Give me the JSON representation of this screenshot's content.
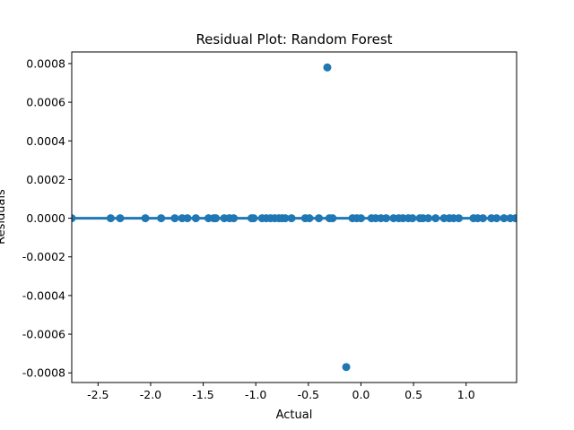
{
  "chart_data": {
    "type": "scatter",
    "title": "Residual Plot: Random Forest",
    "xlabel": "Actual",
    "ylabel": "Residuals",
    "xlim": [
      -2.75,
      1.48
    ],
    "ylim": [
      -0.00085,
      0.00086
    ],
    "grid": false,
    "legend": "none",
    "x_ticks": [
      "-2.5",
      "-2.0",
      "-1.5",
      "-1.0",
      "-0.5",
      "0.0",
      "0.5",
      "1.0"
    ],
    "x_tick_values": [
      -2.5,
      -2.0,
      -1.5,
      -1.0,
      -0.5,
      0.0,
      0.5,
      1.0
    ],
    "y_ticks": [
      "-0.0008",
      "-0.0006",
      "-0.0004",
      "-0.0002",
      "0.0000",
      "0.0002",
      "0.0004",
      "0.0006",
      "0.0008"
    ],
    "y_tick_values": [
      -0.0008,
      -0.0006,
      -0.0004,
      -0.0002,
      0.0,
      0.0002,
      0.0004,
      0.0006,
      0.0008
    ],
    "regression_line": {
      "x": [
        -2.75,
        1.48
      ],
      "y": [
        0.0,
        0.0
      ]
    },
    "series": [
      {
        "color": "#1f77b4",
        "points": [
          {
            "x": -2.75,
            "y": 0.0
          },
          {
            "x": -2.38,
            "y": 0.0
          },
          {
            "x": -2.29,
            "y": 0.0
          },
          {
            "x": -2.05,
            "y": 0.0
          },
          {
            "x": -1.9,
            "y": 0.0
          },
          {
            "x": -1.77,
            "y": 0.0
          },
          {
            "x": -1.7,
            "y": 0.0
          },
          {
            "x": -1.65,
            "y": 0.0
          },
          {
            "x": -1.57,
            "y": 0.0
          },
          {
            "x": -1.45,
            "y": 0.0
          },
          {
            "x": -1.4,
            "y": 0.0
          },
          {
            "x": -1.38,
            "y": 0.0
          },
          {
            "x": -1.3,
            "y": 0.0
          },
          {
            "x": -1.25,
            "y": 0.0
          },
          {
            "x": -1.21,
            "y": 0.0
          },
          {
            "x": -1.04,
            "y": 0.0
          },
          {
            "x": -1.02,
            "y": 0.0
          },
          {
            "x": -0.94,
            "y": 0.0
          },
          {
            "x": -0.9,
            "y": 0.0
          },
          {
            "x": -0.86,
            "y": 0.0
          },
          {
            "x": -0.82,
            "y": 0.0
          },
          {
            "x": -0.78,
            "y": 0.0
          },
          {
            "x": -0.75,
            "y": 0.0
          },
          {
            "x": -0.72,
            "y": 0.0
          },
          {
            "x": -0.66,
            "y": 0.0
          },
          {
            "x": -0.53,
            "y": 0.0
          },
          {
            "x": -0.49,
            "y": 0.0
          },
          {
            "x": -0.4,
            "y": 0.0
          },
          {
            "x": -0.32,
            "y": 0.00078
          },
          {
            "x": -0.3,
            "y": 0.0
          },
          {
            "x": -0.27,
            "y": 0.0
          },
          {
            "x": -0.14,
            "y": -0.00077
          },
          {
            "x": -0.08,
            "y": 0.0
          },
          {
            "x": -0.04,
            "y": 0.0
          },
          {
            "x": 0.0,
            "y": 0.0
          },
          {
            "x": 0.1,
            "y": 0.0
          },
          {
            "x": 0.14,
            "y": 0.0
          },
          {
            "x": 0.19,
            "y": 0.0
          },
          {
            "x": 0.24,
            "y": 0.0
          },
          {
            "x": 0.31,
            "y": 0.0
          },
          {
            "x": 0.36,
            "y": 0.0
          },
          {
            "x": 0.4,
            "y": 0.0
          },
          {
            "x": 0.45,
            "y": 0.0
          },
          {
            "x": 0.49,
            "y": 0.0
          },
          {
            "x": 0.56,
            "y": 0.0
          },
          {
            "x": 0.59,
            "y": 0.0
          },
          {
            "x": 0.64,
            "y": 0.0
          },
          {
            "x": 0.71,
            "y": 0.0
          },
          {
            "x": 0.79,
            "y": 0.0
          },
          {
            "x": 0.84,
            "y": 0.0
          },
          {
            "x": 0.88,
            "y": 0.0
          },
          {
            "x": 0.93,
            "y": 0.0
          },
          {
            "x": 1.07,
            "y": 0.0
          },
          {
            "x": 1.11,
            "y": 0.0
          },
          {
            "x": 1.16,
            "y": 0.0
          },
          {
            "x": 1.24,
            "y": 0.0
          },
          {
            "x": 1.29,
            "y": 0.0
          },
          {
            "x": 1.36,
            "y": 0.0
          },
          {
            "x": 1.42,
            "y": 0.0
          },
          {
            "x": 1.47,
            "y": 0.0
          }
        ]
      }
    ]
  }
}
